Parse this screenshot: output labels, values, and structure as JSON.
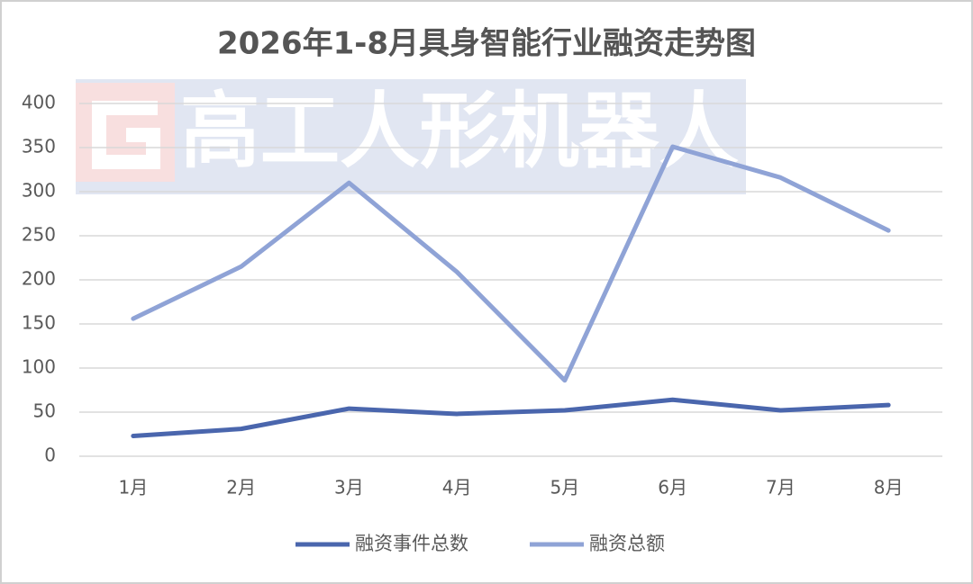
{
  "chart_data": {
    "type": "line",
    "title": "2026年1-8月具身智能行业融资走势图",
    "watermark": "高工人形机器人",
    "categories": [
      "1月",
      "2月",
      "3月",
      "4月",
      "5月",
      "6月",
      "7月",
      "8月"
    ],
    "series": [
      {
        "name": "融资事件总数",
        "color": "#4a66ad",
        "values": [
          23,
          31,
          54,
          48,
          52,
          64,
          52,
          58
        ]
      },
      {
        "name": "融资总额",
        "color": "#8fa3d6",
        "values": [
          156,
          215,
          310,
          209,
          86,
          351,
          316,
          256
        ]
      }
    ],
    "ylim": [
      0,
      400
    ],
    "yticks": [
      0,
      50,
      100,
      150,
      200,
      250,
      300,
      350,
      400
    ],
    "grid": true,
    "legend": "bottom"
  }
}
